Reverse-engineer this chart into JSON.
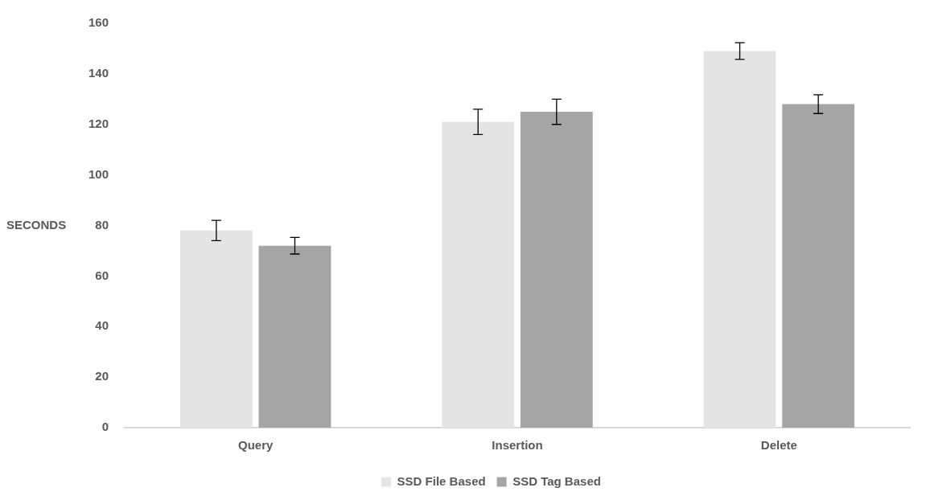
{
  "chart_data": {
    "type": "bar",
    "ylabel": "SECONDS",
    "categories": [
      "Query",
      "Insertion",
      "Delete"
    ],
    "series": [
      {
        "name": "SSD File Based",
        "color": "#e4e4e4",
        "values": [
          78,
          121,
          149
        ],
        "errors": [
          4,
          5,
          3.3
        ]
      },
      {
        "name": "SSD Tag Based",
        "color": "#a5a5a5",
        "values": [
          72,
          125,
          128
        ],
        "errors": [
          3.3,
          5,
          3.7
        ]
      }
    ],
    "ylim": [
      0,
      160
    ],
    "yticks": [
      0,
      20,
      40,
      60,
      80,
      100,
      120,
      140,
      160
    ],
    "grid": false,
    "legend": "bottom"
  }
}
